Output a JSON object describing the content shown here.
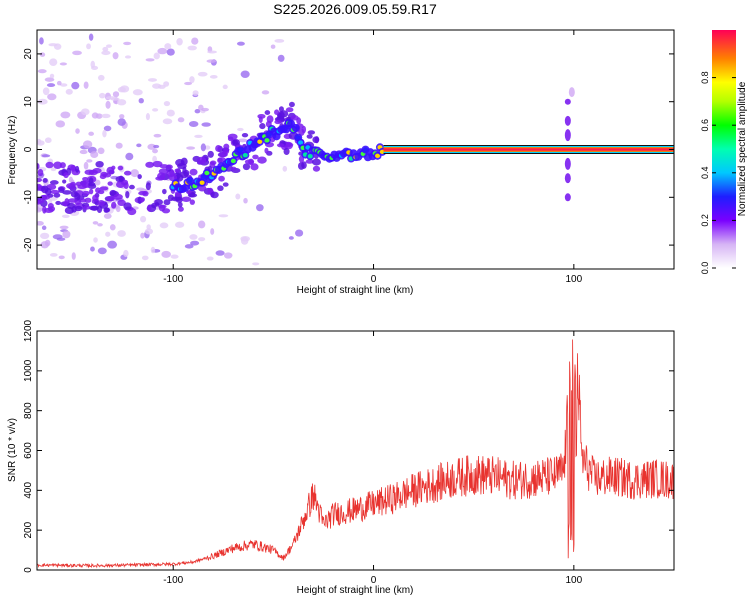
{
  "page_title": "S225.2026.009.05.59.R17",
  "chart_data": [
    {
      "id": "spectrogram",
      "type": "heatmap",
      "title": "S225.2026.009.05.59.R17",
      "xlabel": "Height of straight line (km)",
      "ylabel": "Frequency (Hz)",
      "xlim": [
        -168,
        150
      ],
      "ylim": [
        -25,
        25
      ],
      "xticks": [
        -100,
        0,
        100
      ],
      "yticks": [
        -20,
        -10,
        0,
        10,
        20
      ],
      "colorbar": {
        "label": "Normalized spectral amplitude",
        "range": [
          0,
          1
        ],
        "ticks": [
          0.0,
          0.2,
          0.4,
          0.6,
          0.8
        ]
      },
      "ridge": [
        {
          "x": -100,
          "y": -8
        },
        {
          "x": -90,
          "y": -7
        },
        {
          "x": -80,
          "y": -5
        },
        {
          "x": -70,
          "y": -2
        },
        {
          "x": -60,
          "y": 1
        },
        {
          "x": -50,
          "y": 3.5
        },
        {
          "x": -40,
          "y": 5
        },
        {
          "x": -35,
          "y": 0
        },
        {
          "x": -30,
          "y": -1
        },
        {
          "x": -20,
          "y": -1.5
        },
        {
          "x": -10,
          "y": -1
        },
        {
          "x": 0,
          "y": -0.5
        },
        {
          "x": 10,
          "y": 0
        },
        {
          "x": 50,
          "y": 0
        },
        {
          "x": 100,
          "y": 0
        },
        {
          "x": 150,
          "y": 0
        }
      ],
      "grid": false,
      "legend": "right"
    },
    {
      "id": "snr",
      "type": "line",
      "xlabel": "Height of straight line (km)",
      "ylabel": "SNR (10 * v/v)",
      "xlim": [
        -168,
        150
      ],
      "ylim": [
        0,
        1200
      ],
      "xticks": [
        -100,
        0,
        100
      ],
      "yticks": [
        0,
        200,
        400,
        600,
        800,
        1000,
        1200
      ],
      "series": [
        {
          "color": "#e8332f",
          "x": [
            -168,
            -140,
            -120,
            -100,
            -90,
            -80,
            -70,
            -60,
            -50,
            -45,
            -40,
            -35,
            -30,
            -25,
            -20,
            -10,
            0,
            10,
            20,
            30,
            40,
            50,
            60,
            70,
            80,
            90,
            95,
            98,
            100,
            102,
            104,
            110,
            120,
            130,
            140,
            150
          ],
          "y": [
            25,
            22,
            25,
            30,
            40,
            70,
            110,
            130,
            100,
            60,
            130,
            250,
            380,
            230,
            280,
            300,
            330,
            360,
            400,
            430,
            460,
            480,
            470,
            450,
            460,
            470,
            500,
            900,
            60,
            1000,
            560,
            460,
            470,
            450,
            460,
            450
          ]
        }
      ],
      "grid": false
    }
  ]
}
